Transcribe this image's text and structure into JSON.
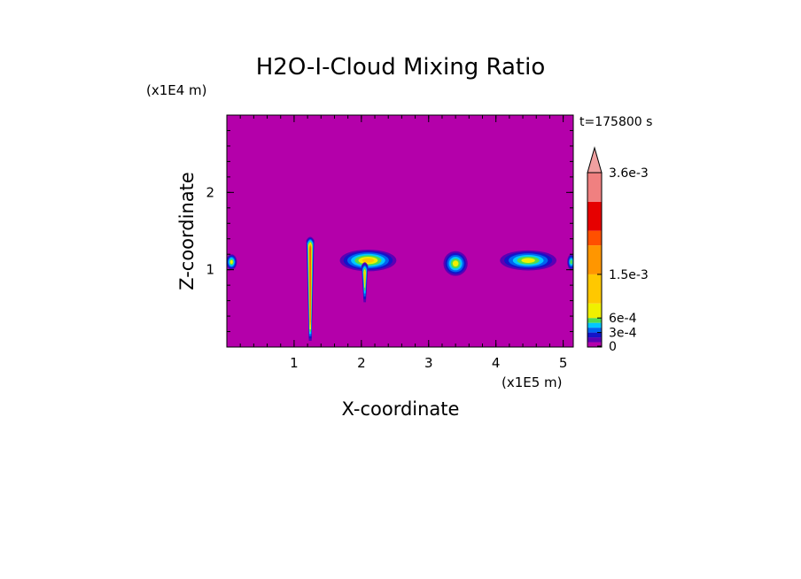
{
  "chart_data": {
    "type": "heatmap",
    "title": "H2O-I-Cloud Mixing Ratio",
    "xlabel": "X-coordinate",
    "ylabel": "Z-coordinate",
    "x_unit": "(x1E5 m)",
    "y_unit": "(x1E4 m)",
    "time_label": "t=175800 s",
    "xlim": [
      0,
      5.15
    ],
    "ylim": [
      0,
      3.0
    ],
    "x_ticks": [
      1,
      2,
      3,
      4,
      5
    ],
    "y_ticks": [
      1,
      2
    ],
    "x_minor_step": 0.2,
    "y_minor_step": 0.2,
    "background_color": "#b400aa",
    "colorbar": {
      "tick_labels": [
        {
          "value": 0,
          "label": "0"
        },
        {
          "value": 0.0003,
          "label": "3e-4"
        },
        {
          "value": 0.0006,
          "label": "6e-4"
        },
        {
          "value": 0.0015,
          "label": "1.5e-3"
        },
        {
          "value": 0.0036,
          "label": "3.6e-3"
        }
      ],
      "levels": [
        {
          "from": 0,
          "to": 0.0001,
          "color": "#b400aa"
        },
        {
          "from": 0.0001,
          "to": 0.0002,
          "color": "#5a00b4"
        },
        {
          "from": 0.0002,
          "to": 0.0003,
          "color": "#1414c8"
        },
        {
          "from": 0.0003,
          "to": 0.0004,
          "color": "#0064f0"
        },
        {
          "from": 0.0004,
          "to": 0.0005,
          "color": "#00c8ff"
        },
        {
          "from": 0.0005,
          "to": 0.0006,
          "color": "#50dc50"
        },
        {
          "from": 0.0006,
          "to": 0.0009,
          "color": "#f0f000"
        },
        {
          "from": 0.0009,
          "to": 0.0015,
          "color": "#ffc800"
        },
        {
          "from": 0.0015,
          "to": 0.0021,
          "color": "#ff9600"
        },
        {
          "from": 0.0021,
          "to": 0.0024,
          "color": "#ff5000"
        },
        {
          "from": 0.0024,
          "to": 0.003,
          "color": "#e60000"
        },
        {
          "from": 0.003,
          "to": 0.0036,
          "color": "#f08080"
        }
      ],
      "over_color": "#f0a0a0"
    },
    "cloud_features": [
      {
        "kind": "blob",
        "x": 0.07,
        "z": 1.1,
        "rx": 0.08,
        "rz": 0.1,
        "peak": 0.00065
      },
      {
        "kind": "column",
        "x": 1.24,
        "z_bottom": 0.08,
        "z_top": 1.38,
        "width": 0.06,
        "peak": 0.0021
      },
      {
        "kind": "blob",
        "x": 2.1,
        "z": 1.12,
        "rx": 0.42,
        "rz": 0.14,
        "peak": 0.0012
      },
      {
        "kind": "tail",
        "x": 2.05,
        "z_bottom": 0.58,
        "z_top": 1.05,
        "width": 0.05,
        "peak": 0.0009
      },
      {
        "kind": "blob",
        "x": 3.4,
        "z": 1.08,
        "rx": 0.18,
        "rz": 0.16,
        "peak": 0.0006
      },
      {
        "kind": "blob",
        "x": 4.48,
        "z": 1.12,
        "rx": 0.42,
        "rz": 0.13,
        "peak": 0.0008
      },
      {
        "kind": "blob",
        "x": 5.12,
        "z": 1.1,
        "rx": 0.06,
        "rz": 0.1,
        "peak": 0.0005
      }
    ]
  }
}
